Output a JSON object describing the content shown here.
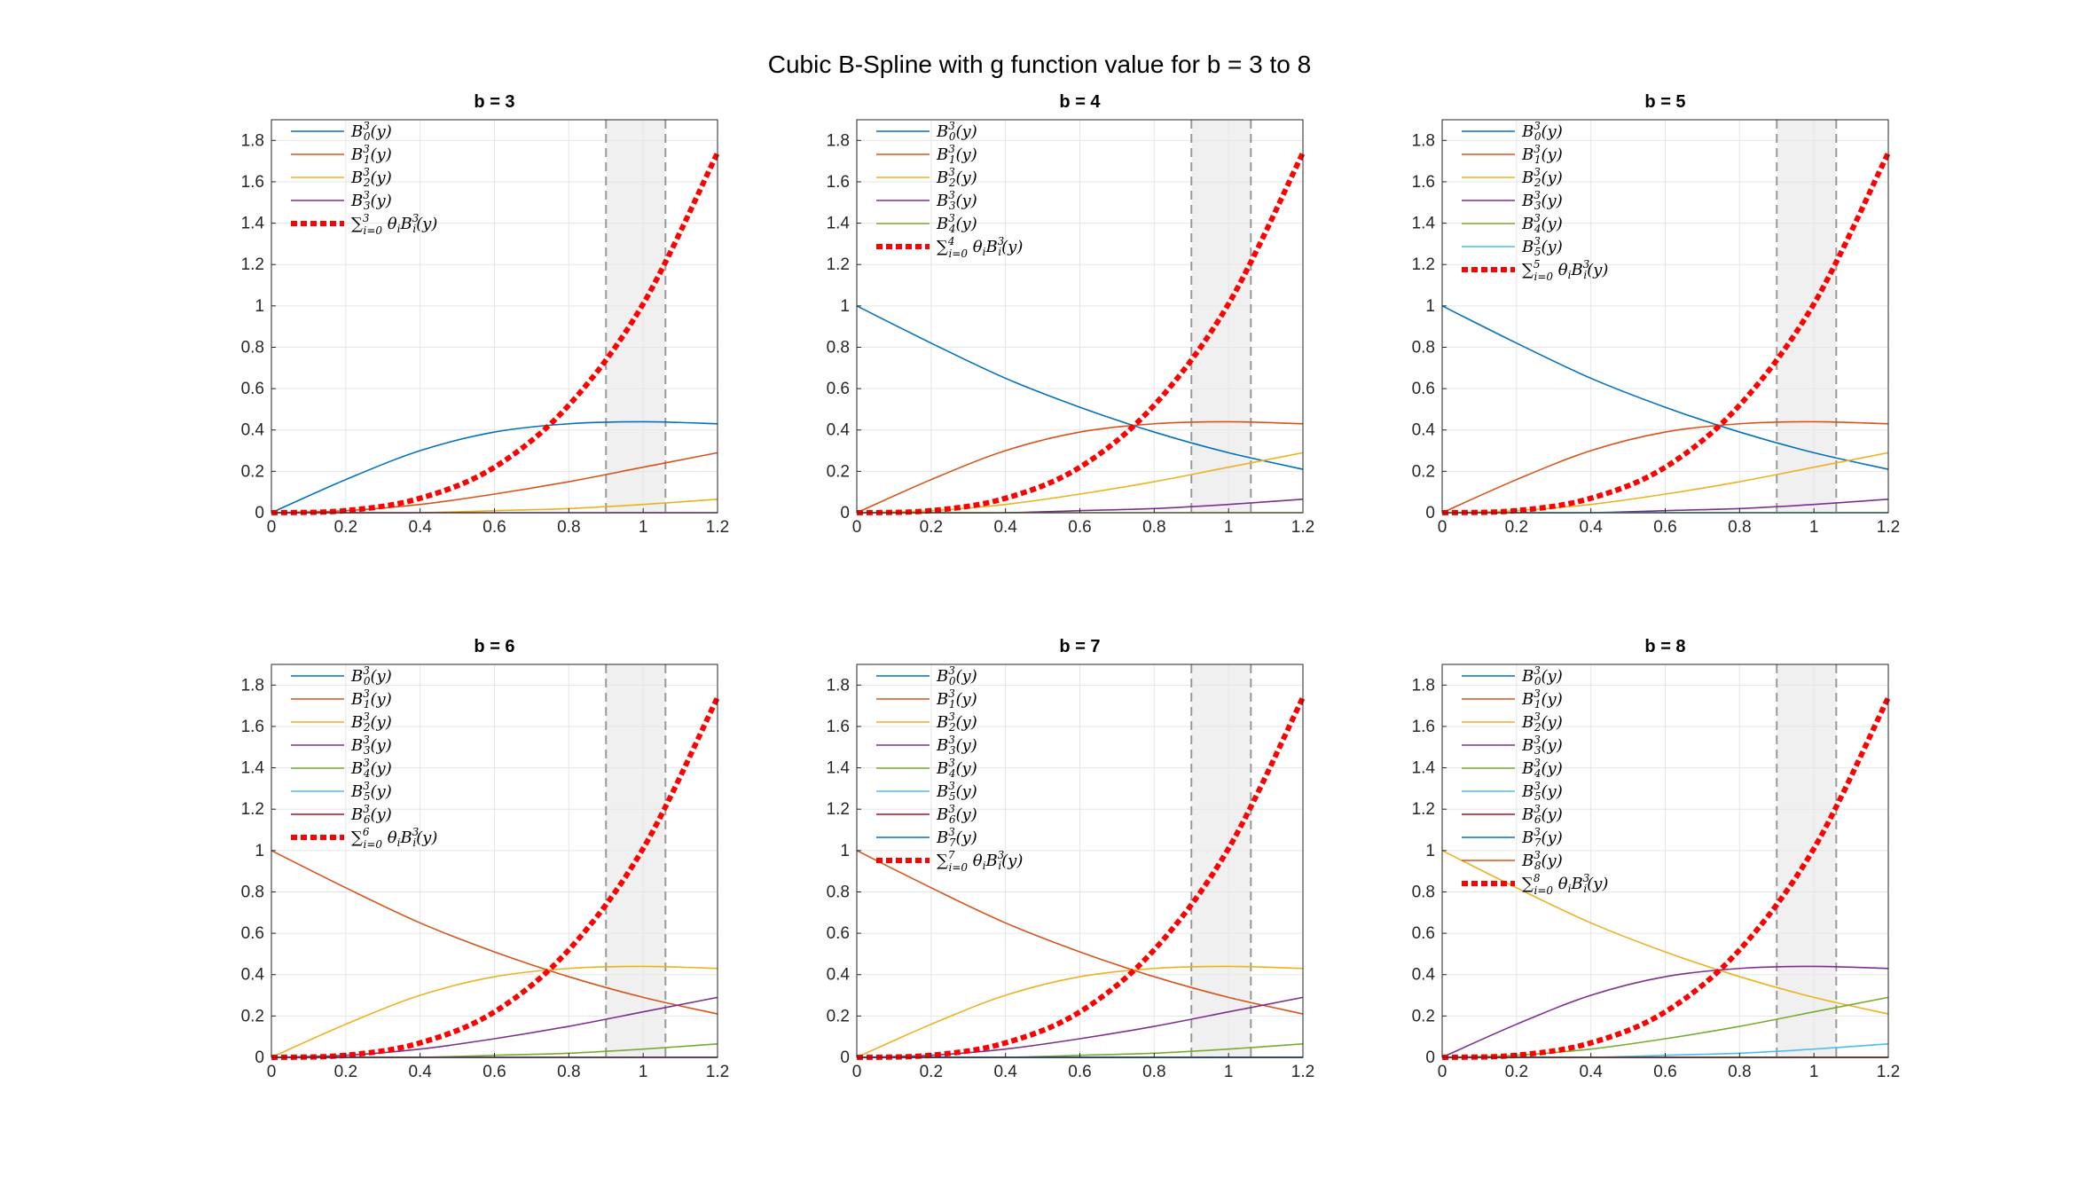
{
  "figure": {
    "title": "Cubic B-Spline with g function value for b = 3 to 8"
  },
  "colors": {
    "basis": [
      "#0072BD",
      "#D95319",
      "#EDB120",
      "#7E2F8E",
      "#77AC30",
      "#4DBEEE",
      "#A2142F",
      "#0072BD",
      "#D95319"
    ],
    "sum": "#FF0000",
    "shade": "#F0F0F0",
    "shade_edge": "#999999",
    "grid": "#E5E5E5",
    "axis": "#262626"
  },
  "chart_data": [
    {
      "type": "line",
      "title": "b = 3",
      "b": 3,
      "xlim": [
        0,
        1.2
      ],
      "ylim": [
        0,
        1.9
      ],
      "xticks": [
        "0",
        "0.2",
        "0.4",
        "0.6",
        "0.8",
        "1",
        "1.2"
      ],
      "yticks": [
        "0",
        "0.2",
        "0.4",
        "0.6",
        "0.8",
        "1",
        "1.2",
        "1.4",
        "1.6",
        "1.8"
      ],
      "grid": true,
      "legend": "top-left",
      "shaded_interval": [
        0.9,
        1.06
      ],
      "series": [
        {
          "label": "B_0^3(y)",
          "x": [
            0,
            0.2,
            0.4,
            0.6,
            0.8,
            1.0,
            1.2
          ],
          "y": [
            0,
            0.16,
            0.3,
            0.39,
            0.43,
            0.44,
            0.43
          ]
        },
        {
          "label": "B_1^3(y)",
          "x": [
            0,
            0.2,
            0.4,
            0.6,
            0.8,
            1.0,
            1.2
          ],
          "y": [
            0,
            0.01,
            0.04,
            0.09,
            0.15,
            0.22,
            0.29
          ]
        },
        {
          "label": "B_2^3(y)",
          "x": [
            0,
            0.2,
            0.4,
            0.6,
            0.8,
            1.0,
            1.2
          ],
          "y": [
            0,
            0.0,
            0.0,
            0.01,
            0.02,
            0.04,
            0.065
          ]
        },
        {
          "label": "B_3^3(y)",
          "x": [
            0,
            0.2,
            0.4,
            0.6,
            0.8,
            1.0,
            1.2
          ],
          "y": [
            0,
            0,
            0,
            0,
            0,
            0,
            0
          ]
        },
        {
          "label": "Σ_{i=0}^{3} θ_i B_i^3(y)",
          "sum": true,
          "x": [
            0,
            0.2,
            0.4,
            0.6,
            0.8,
            1.0,
            1.2
          ],
          "y": [
            0,
            0.01,
            0.07,
            0.22,
            0.52,
            1.01,
            1.74
          ]
        }
      ]
    },
    {
      "type": "line",
      "title": "b = 4",
      "b": 4,
      "xlim": [
        0,
        1.2
      ],
      "ylim": [
        0,
        1.9
      ],
      "xticks": [
        "0",
        "0.2",
        "0.4",
        "0.6",
        "0.8",
        "1",
        "1.2"
      ],
      "yticks": [
        "0",
        "0.2",
        "0.4",
        "0.6",
        "0.8",
        "1",
        "1.2",
        "1.4",
        "1.6",
        "1.8"
      ],
      "grid": true,
      "legend": "top-left",
      "shaded_interval": [
        0.9,
        1.06
      ],
      "series": [
        {
          "label": "B_0^3(y)",
          "x": [
            0,
            0.2,
            0.4,
            0.6,
            0.8,
            1.0,
            1.2
          ],
          "y": [
            1.0,
            0.82,
            0.65,
            0.51,
            0.39,
            0.29,
            0.21
          ]
        },
        {
          "label": "B_1^3(y)",
          "x": [
            0,
            0.2,
            0.4,
            0.6,
            0.8,
            1.0,
            1.2
          ],
          "y": [
            0,
            0.16,
            0.3,
            0.39,
            0.43,
            0.44,
            0.43
          ]
        },
        {
          "label": "B_2^3(y)",
          "x": [
            0,
            0.2,
            0.4,
            0.6,
            0.8,
            1.0,
            1.2
          ],
          "y": [
            0,
            0.01,
            0.04,
            0.09,
            0.15,
            0.22,
            0.29
          ]
        },
        {
          "label": "B_3^3(y)",
          "x": [
            0,
            0.2,
            0.4,
            0.6,
            0.8,
            1.0,
            1.2
          ],
          "y": [
            0,
            0.0,
            0.0,
            0.01,
            0.02,
            0.04,
            0.065
          ]
        },
        {
          "label": "B_4^3(y)",
          "x": [
            0,
            0.2,
            0.4,
            0.6,
            0.8,
            1.0,
            1.2
          ],
          "y": [
            0,
            0,
            0,
            0,
            0,
            0,
            0
          ]
        },
        {
          "label": "Σ_{i=0}^{4} θ_i B_i^3(y)",
          "sum": true,
          "x": [
            0,
            0.2,
            0.4,
            0.6,
            0.8,
            1.0,
            1.2
          ],
          "y": [
            0,
            0.01,
            0.07,
            0.22,
            0.52,
            1.01,
            1.74
          ]
        }
      ]
    },
    {
      "type": "line",
      "title": "b = 5",
      "b": 5,
      "xlim": [
        0,
        1.2
      ],
      "ylim": [
        0,
        1.9
      ],
      "xticks": [
        "0",
        "0.2",
        "0.4",
        "0.6",
        "0.8",
        "1",
        "1.2"
      ],
      "yticks": [
        "0",
        "0.2",
        "0.4",
        "0.6",
        "0.8",
        "1",
        "1.2",
        "1.4",
        "1.6",
        "1.8"
      ],
      "grid": true,
      "legend": "top-left",
      "shaded_interval": [
        0.9,
        1.06
      ],
      "series": [
        {
          "label": "B_0^3(y)",
          "x": [
            0,
            0.2,
            0.4,
            0.6,
            0.8,
            1.0,
            1.2
          ],
          "y": [
            1.0,
            0.82,
            0.65,
            0.51,
            0.39,
            0.29,
            0.21
          ]
        },
        {
          "label": "B_1^3(y)",
          "x": [
            0,
            0.2,
            0.4,
            0.6,
            0.8,
            1.0,
            1.2
          ],
          "y": [
            0,
            0.16,
            0.3,
            0.39,
            0.43,
            0.44,
            0.43
          ]
        },
        {
          "label": "B_2^3(y)",
          "x": [
            0,
            0.2,
            0.4,
            0.6,
            0.8,
            1.0,
            1.2
          ],
          "y": [
            0,
            0.01,
            0.04,
            0.09,
            0.15,
            0.22,
            0.29
          ]
        },
        {
          "label": "B_3^3(y)",
          "x": [
            0,
            0.2,
            0.4,
            0.6,
            0.8,
            1.0,
            1.2
          ],
          "y": [
            0,
            0.0,
            0.0,
            0.01,
            0.02,
            0.04,
            0.065
          ]
        },
        {
          "label": "B_4^3(y)",
          "x": [
            0,
            0.2,
            0.4,
            0.6,
            0.8,
            1.0,
            1.2
          ],
          "y": [
            0,
            0,
            0,
            0,
            0,
            0,
            0
          ]
        },
        {
          "label": "B_5^3(y)",
          "x": [
            0,
            0.2,
            0.4,
            0.6,
            0.8,
            1.0,
            1.2
          ],
          "y": [
            0,
            0,
            0,
            0,
            0,
            0,
            0
          ]
        },
        {
          "label": "Σ_{i=0}^{5} θ_i B_i^3(y)",
          "sum": true,
          "x": [
            0,
            0.2,
            0.4,
            0.6,
            0.8,
            1.0,
            1.2
          ],
          "y": [
            0,
            0.01,
            0.07,
            0.22,
            0.52,
            1.01,
            1.74
          ]
        }
      ]
    },
    {
      "type": "line",
      "title": "b = 6",
      "b": 6,
      "xlim": [
        0,
        1.2
      ],
      "ylim": [
        0,
        1.9
      ],
      "xticks": [
        "0",
        "0.2",
        "0.4",
        "0.6",
        "0.8",
        "1",
        "1.2"
      ],
      "yticks": [
        "0",
        "0.2",
        "0.4",
        "0.6",
        "0.8",
        "1",
        "1.2",
        "1.4",
        "1.6",
        "1.8"
      ],
      "grid": true,
      "legend": "top-left",
      "shaded_interval": [
        0.9,
        1.06
      ],
      "series": [
        {
          "label": "B_0^3(y)",
          "x": [
            0,
            0.2,
            0.4,
            0.6,
            0.8,
            1.0,
            1.2
          ],
          "y": [
            0,
            0,
            0,
            0,
            0,
            0,
            0
          ]
        },
        {
          "label": "B_1^3(y)",
          "x": [
            0,
            0.2,
            0.4,
            0.6,
            0.8,
            1.0,
            1.2
          ],
          "y": [
            1.0,
            0.82,
            0.65,
            0.51,
            0.39,
            0.29,
            0.21
          ]
        },
        {
          "label": "B_2^3(y)",
          "x": [
            0,
            0.2,
            0.4,
            0.6,
            0.8,
            1.0,
            1.2
          ],
          "y": [
            0,
            0.16,
            0.3,
            0.39,
            0.43,
            0.44,
            0.43
          ]
        },
        {
          "label": "B_3^3(y)",
          "x": [
            0,
            0.2,
            0.4,
            0.6,
            0.8,
            1.0,
            1.2
          ],
          "y": [
            0,
            0.01,
            0.04,
            0.09,
            0.15,
            0.22,
            0.29
          ]
        },
        {
          "label": "B_4^3(y)",
          "x": [
            0,
            0.2,
            0.4,
            0.6,
            0.8,
            1.0,
            1.2
          ],
          "y": [
            0,
            0.0,
            0.0,
            0.01,
            0.02,
            0.04,
            0.065
          ]
        },
        {
          "label": "B_5^3(y)",
          "x": [
            0,
            0.2,
            0.4,
            0.6,
            0.8,
            1.0,
            1.2
          ],
          "y": [
            0,
            0,
            0,
            0,
            0,
            0,
            0
          ]
        },
        {
          "label": "B_6^3(y)",
          "x": [
            0,
            0.2,
            0.4,
            0.6,
            0.8,
            1.0,
            1.2
          ],
          "y": [
            0,
            0,
            0,
            0,
            0,
            0,
            0
          ]
        },
        {
          "label": "Σ_{i=0}^{6} θ_i B_i^3(y)",
          "sum": true,
          "x": [
            0,
            0.2,
            0.4,
            0.6,
            0.8,
            1.0,
            1.2
          ],
          "y": [
            0,
            0.01,
            0.07,
            0.22,
            0.52,
            1.01,
            1.74
          ]
        }
      ]
    },
    {
      "type": "line",
      "title": "b = 7",
      "b": 7,
      "xlim": [
        0,
        1.2
      ],
      "ylim": [
        0,
        1.9
      ],
      "xticks": [
        "0",
        "0.2",
        "0.4",
        "0.6",
        "0.8",
        "1",
        "1.2"
      ],
      "yticks": [
        "0",
        "0.2",
        "0.4",
        "0.6",
        "0.8",
        "1",
        "1.2",
        "1.4",
        "1.6",
        "1.8"
      ],
      "grid": true,
      "legend": "top-left",
      "shaded_interval": [
        0.9,
        1.06
      ],
      "series": [
        {
          "label": "B_0^3(y)",
          "x": [
            0,
            0.2,
            0.4,
            0.6,
            0.8,
            1.0,
            1.2
          ],
          "y": [
            0,
            0,
            0,
            0,
            0,
            0,
            0
          ]
        },
        {
          "label": "B_1^3(y)",
          "x": [
            0,
            0.2,
            0.4,
            0.6,
            0.8,
            1.0,
            1.2
          ],
          "y": [
            1.0,
            0.82,
            0.65,
            0.51,
            0.39,
            0.29,
            0.21
          ]
        },
        {
          "label": "B_2^3(y)",
          "x": [
            0,
            0.2,
            0.4,
            0.6,
            0.8,
            1.0,
            1.2
          ],
          "y": [
            0,
            0.16,
            0.3,
            0.39,
            0.43,
            0.44,
            0.43
          ]
        },
        {
          "label": "B_3^3(y)",
          "x": [
            0,
            0.2,
            0.4,
            0.6,
            0.8,
            1.0,
            1.2
          ],
          "y": [
            0,
            0.01,
            0.04,
            0.09,
            0.15,
            0.22,
            0.29
          ]
        },
        {
          "label": "B_4^3(y)",
          "x": [
            0,
            0.2,
            0.4,
            0.6,
            0.8,
            1.0,
            1.2
          ],
          "y": [
            0,
            0.0,
            0.0,
            0.01,
            0.02,
            0.04,
            0.065
          ]
        },
        {
          "label": "B_5^3(y)",
          "x": [
            0,
            0.2,
            0.4,
            0.6,
            0.8,
            1.0,
            1.2
          ],
          "y": [
            0,
            0,
            0,
            0,
            0,
            0,
            0
          ]
        },
        {
          "label": "B_6^3(y)",
          "x": [
            0,
            0.2,
            0.4,
            0.6,
            0.8,
            1.0,
            1.2
          ],
          "y": [
            0,
            0,
            0,
            0,
            0,
            0,
            0
          ]
        },
        {
          "label": "B_7^3(y)",
          "x": [
            0,
            0.2,
            0.4,
            0.6,
            0.8,
            1.0,
            1.2
          ],
          "y": [
            0,
            0,
            0,
            0,
            0,
            0,
            0
          ]
        },
        {
          "label": "Σ_{i=0}^{7} θ_i B_i^3(y)",
          "sum": true,
          "x": [
            0,
            0.2,
            0.4,
            0.6,
            0.8,
            1.0,
            1.2
          ],
          "y": [
            0,
            0.01,
            0.07,
            0.22,
            0.52,
            1.01,
            1.74
          ]
        }
      ]
    },
    {
      "type": "line",
      "title": "b = 8",
      "b": 8,
      "xlim": [
        0,
        1.2
      ],
      "ylim": [
        0,
        1.9
      ],
      "xticks": [
        "0",
        "0.2",
        "0.4",
        "0.6",
        "0.8",
        "1",
        "1.2"
      ],
      "yticks": [
        "0",
        "0.2",
        "0.4",
        "0.6",
        "0.8",
        "1",
        "1.2",
        "1.4",
        "1.6",
        "1.8"
      ],
      "grid": true,
      "legend": "top-left",
      "shaded_interval": [
        0.9,
        1.06
      ],
      "series": [
        {
          "label": "B_0^3(y)",
          "x": [
            0,
            0.2,
            0.4,
            0.6,
            0.8,
            1.0,
            1.2
          ],
          "y": [
            0,
            0,
            0,
            0,
            0,
            0,
            0
          ]
        },
        {
          "label": "B_1^3(y)",
          "x": [
            0,
            0.2,
            0.4,
            0.6,
            0.8,
            1.0,
            1.2
          ],
          "y": [
            0,
            0,
            0,
            0,
            0,
            0,
            0
          ]
        },
        {
          "label": "B_2^3(y)",
          "x": [
            0,
            0.2,
            0.4,
            0.6,
            0.8,
            1.0,
            1.2
          ],
          "y": [
            1.0,
            0.82,
            0.65,
            0.51,
            0.39,
            0.29,
            0.21
          ]
        },
        {
          "label": "B_3^3(y)",
          "x": [
            0,
            0.2,
            0.4,
            0.6,
            0.8,
            1.0,
            1.2
          ],
          "y": [
            0,
            0.16,
            0.3,
            0.39,
            0.43,
            0.44,
            0.43
          ]
        },
        {
          "label": "B_4^3(y)",
          "x": [
            0,
            0.2,
            0.4,
            0.6,
            0.8,
            1.0,
            1.2
          ],
          "y": [
            0,
            0.01,
            0.04,
            0.09,
            0.15,
            0.22,
            0.29
          ]
        },
        {
          "label": "B_5^3(y)",
          "x": [
            0,
            0.2,
            0.4,
            0.6,
            0.8,
            1.0,
            1.2
          ],
          "y": [
            0,
            0.0,
            0.0,
            0.01,
            0.02,
            0.04,
            0.065
          ]
        },
        {
          "label": "B_6^3(y)",
          "x": [
            0,
            0.2,
            0.4,
            0.6,
            0.8,
            1.0,
            1.2
          ],
          "y": [
            0,
            0,
            0,
            0,
            0,
            0,
            0
          ]
        },
        {
          "label": "B_7^3(y)",
          "x": [
            0,
            0.2,
            0.4,
            0.6,
            0.8,
            1.0,
            1.2
          ],
          "y": [
            0,
            0,
            0,
            0,
            0,
            0,
            0
          ]
        },
        {
          "label": "B_8^3(y)",
          "x": [
            0,
            0.2,
            0.4,
            0.6,
            0.8,
            1.0,
            1.2
          ],
          "y": [
            0,
            0,
            0,
            0,
            0,
            0,
            0
          ]
        },
        {
          "label": "Σ_{i=0}^{8} θ_i B_i^3(y)",
          "sum": true,
          "x": [
            0,
            0.2,
            0.4,
            0.6,
            0.8,
            1.0,
            1.2
          ],
          "y": [
            0,
            0.01,
            0.07,
            0.22,
            0.52,
            1.01,
            1.74
          ]
        }
      ]
    }
  ]
}
